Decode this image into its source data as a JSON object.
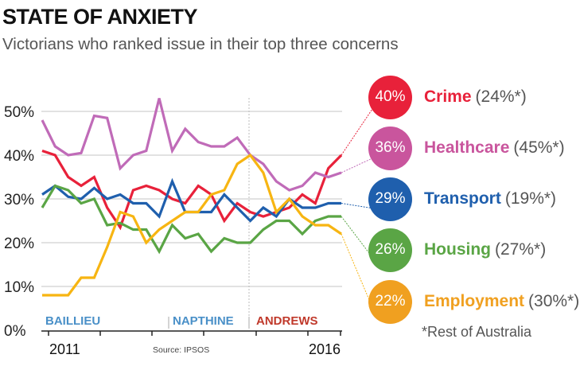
{
  "header": {
    "title": "STATE OF ANXIETY",
    "subtitle": "Victorians who ranked issue in their top three concerns"
  },
  "chart_data": {
    "type": "line",
    "title": "STATE OF ANXIETY",
    "subtitle": "Victorians who ranked issue in their top three concerns",
    "xlabel": "",
    "ylabel": "",
    "ylim": [
      0,
      55
    ],
    "yticks": [
      {
        "value": 0,
        "label": "0%"
      },
      {
        "value": 10,
        "label": "10%"
      },
      {
        "value": 20,
        "label": "20%"
      },
      {
        "value": 30,
        "label": "30%"
      },
      {
        "value": 40,
        "label": "40%"
      },
      {
        "value": 50,
        "label": "50%"
      }
    ],
    "x_tick_labels": [
      {
        "index": 1,
        "label": "2011"
      },
      {
        "index": 23,
        "label": "2016"
      }
    ],
    "n_points": 24,
    "grid": true,
    "eras": [
      {
        "label": "BAILLIEU",
        "start_index": 0,
        "color": "#4a90c8"
      },
      {
        "label": "NAPTHINE",
        "start_index": 10,
        "color": "#4a90c8"
      },
      {
        "label": "ANDREWS",
        "start_index": 16,
        "color": "#c0392b"
      }
    ],
    "source": "Source: IPSOS",
    "series": [
      {
        "name": "Crime",
        "color": "#e8213a",
        "values": [
          41,
          40,
          35,
          33,
          35,
          28,
          23.5,
          32,
          33,
          32,
          30,
          29,
          33,
          31,
          25,
          29,
          27,
          26,
          27,
          28,
          31,
          29,
          37,
          40
        ],
        "latest": "40%",
        "rest_of_australia": "(24%*)"
      },
      {
        "name": "Healthcare",
        "color": "#c06bb8",
        "values": [
          48,
          42,
          40,
          40.5,
          49,
          48.5,
          37,
          40,
          41,
          53,
          41,
          46,
          43,
          42,
          42,
          44,
          40,
          38,
          34,
          32,
          33,
          36,
          35,
          36
        ],
        "latest": "36%",
        "rest_of_australia": "(45%*)"
      },
      {
        "name": "Transport",
        "color": "#1f5fad",
        "values": [
          31,
          33,
          30.5,
          30,
          32.5,
          30,
          31,
          29,
          29,
          26,
          34,
          27,
          27,
          27,
          31,
          28,
          25,
          28,
          26,
          30,
          28,
          28,
          29,
          29
        ],
        "latest": "29%",
        "rest_of_australia": "(19%*)"
      },
      {
        "name": "Housing",
        "color": "#5aa545",
        "values": [
          28,
          33,
          32,
          29,
          30,
          24,
          24.5,
          23,
          23,
          18,
          24,
          21,
          22,
          18,
          21,
          20,
          20,
          23,
          25,
          25,
          22,
          25,
          26,
          26
        ],
        "latest": "26%",
        "rest_of_australia": "(27%*)"
      },
      {
        "name": "Employment",
        "color": "#f7b512",
        "values": [
          8,
          8,
          8,
          12,
          12,
          19,
          27,
          26,
          20,
          23,
          25,
          27,
          27,
          31,
          32,
          38,
          40,
          36,
          27,
          30,
          26,
          24,
          24,
          22
        ],
        "latest": "22%",
        "rest_of_australia": "(30%*)"
      }
    ]
  },
  "legend": {
    "items": [
      {
        "bubble": "40%",
        "name": "Crime",
        "rest": "(24%*)",
        "color": "#e8213a"
      },
      {
        "bubble": "36%",
        "name": "Healthcare",
        "rest": "(45%*)",
        "color": "#c9559d"
      },
      {
        "bubble": "29%",
        "name": "Transport",
        "rest": "(19%*)",
        "color": "#1f5fad"
      },
      {
        "bubble": "26%",
        "name": "Housing",
        "rest": "(27%*)",
        "color": "#5aa545"
      },
      {
        "bubble": "22%",
        "name": "Employment",
        "rest": "(30%*)",
        "color": "#f0a020"
      }
    ],
    "footnote": "*Rest of Australia"
  }
}
